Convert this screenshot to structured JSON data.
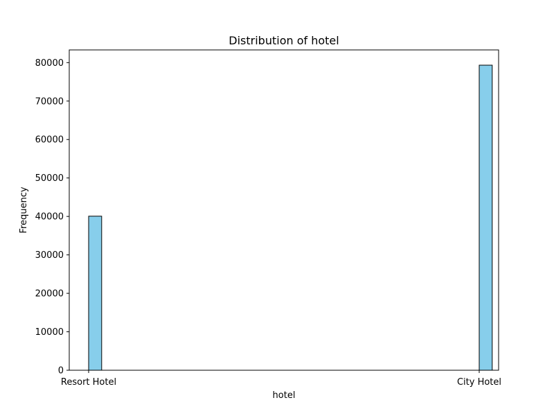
{
  "chart_data": {
    "type": "bar",
    "title": "Distribution of hotel",
    "xlabel": "hotel",
    "ylabel": "Frequency",
    "categories": [
      "Resort Hotel",
      "City Hotel"
    ],
    "values": [
      40060,
      79330
    ],
    "ylim": [
      0,
      83300
    ],
    "yticks": [
      0,
      10000,
      20000,
      30000,
      40000,
      50000,
      60000,
      70000,
      80000
    ],
    "grid": false,
    "legend": "none",
    "bar_color": "#87CEEB",
    "edge_color": "#000000"
  }
}
